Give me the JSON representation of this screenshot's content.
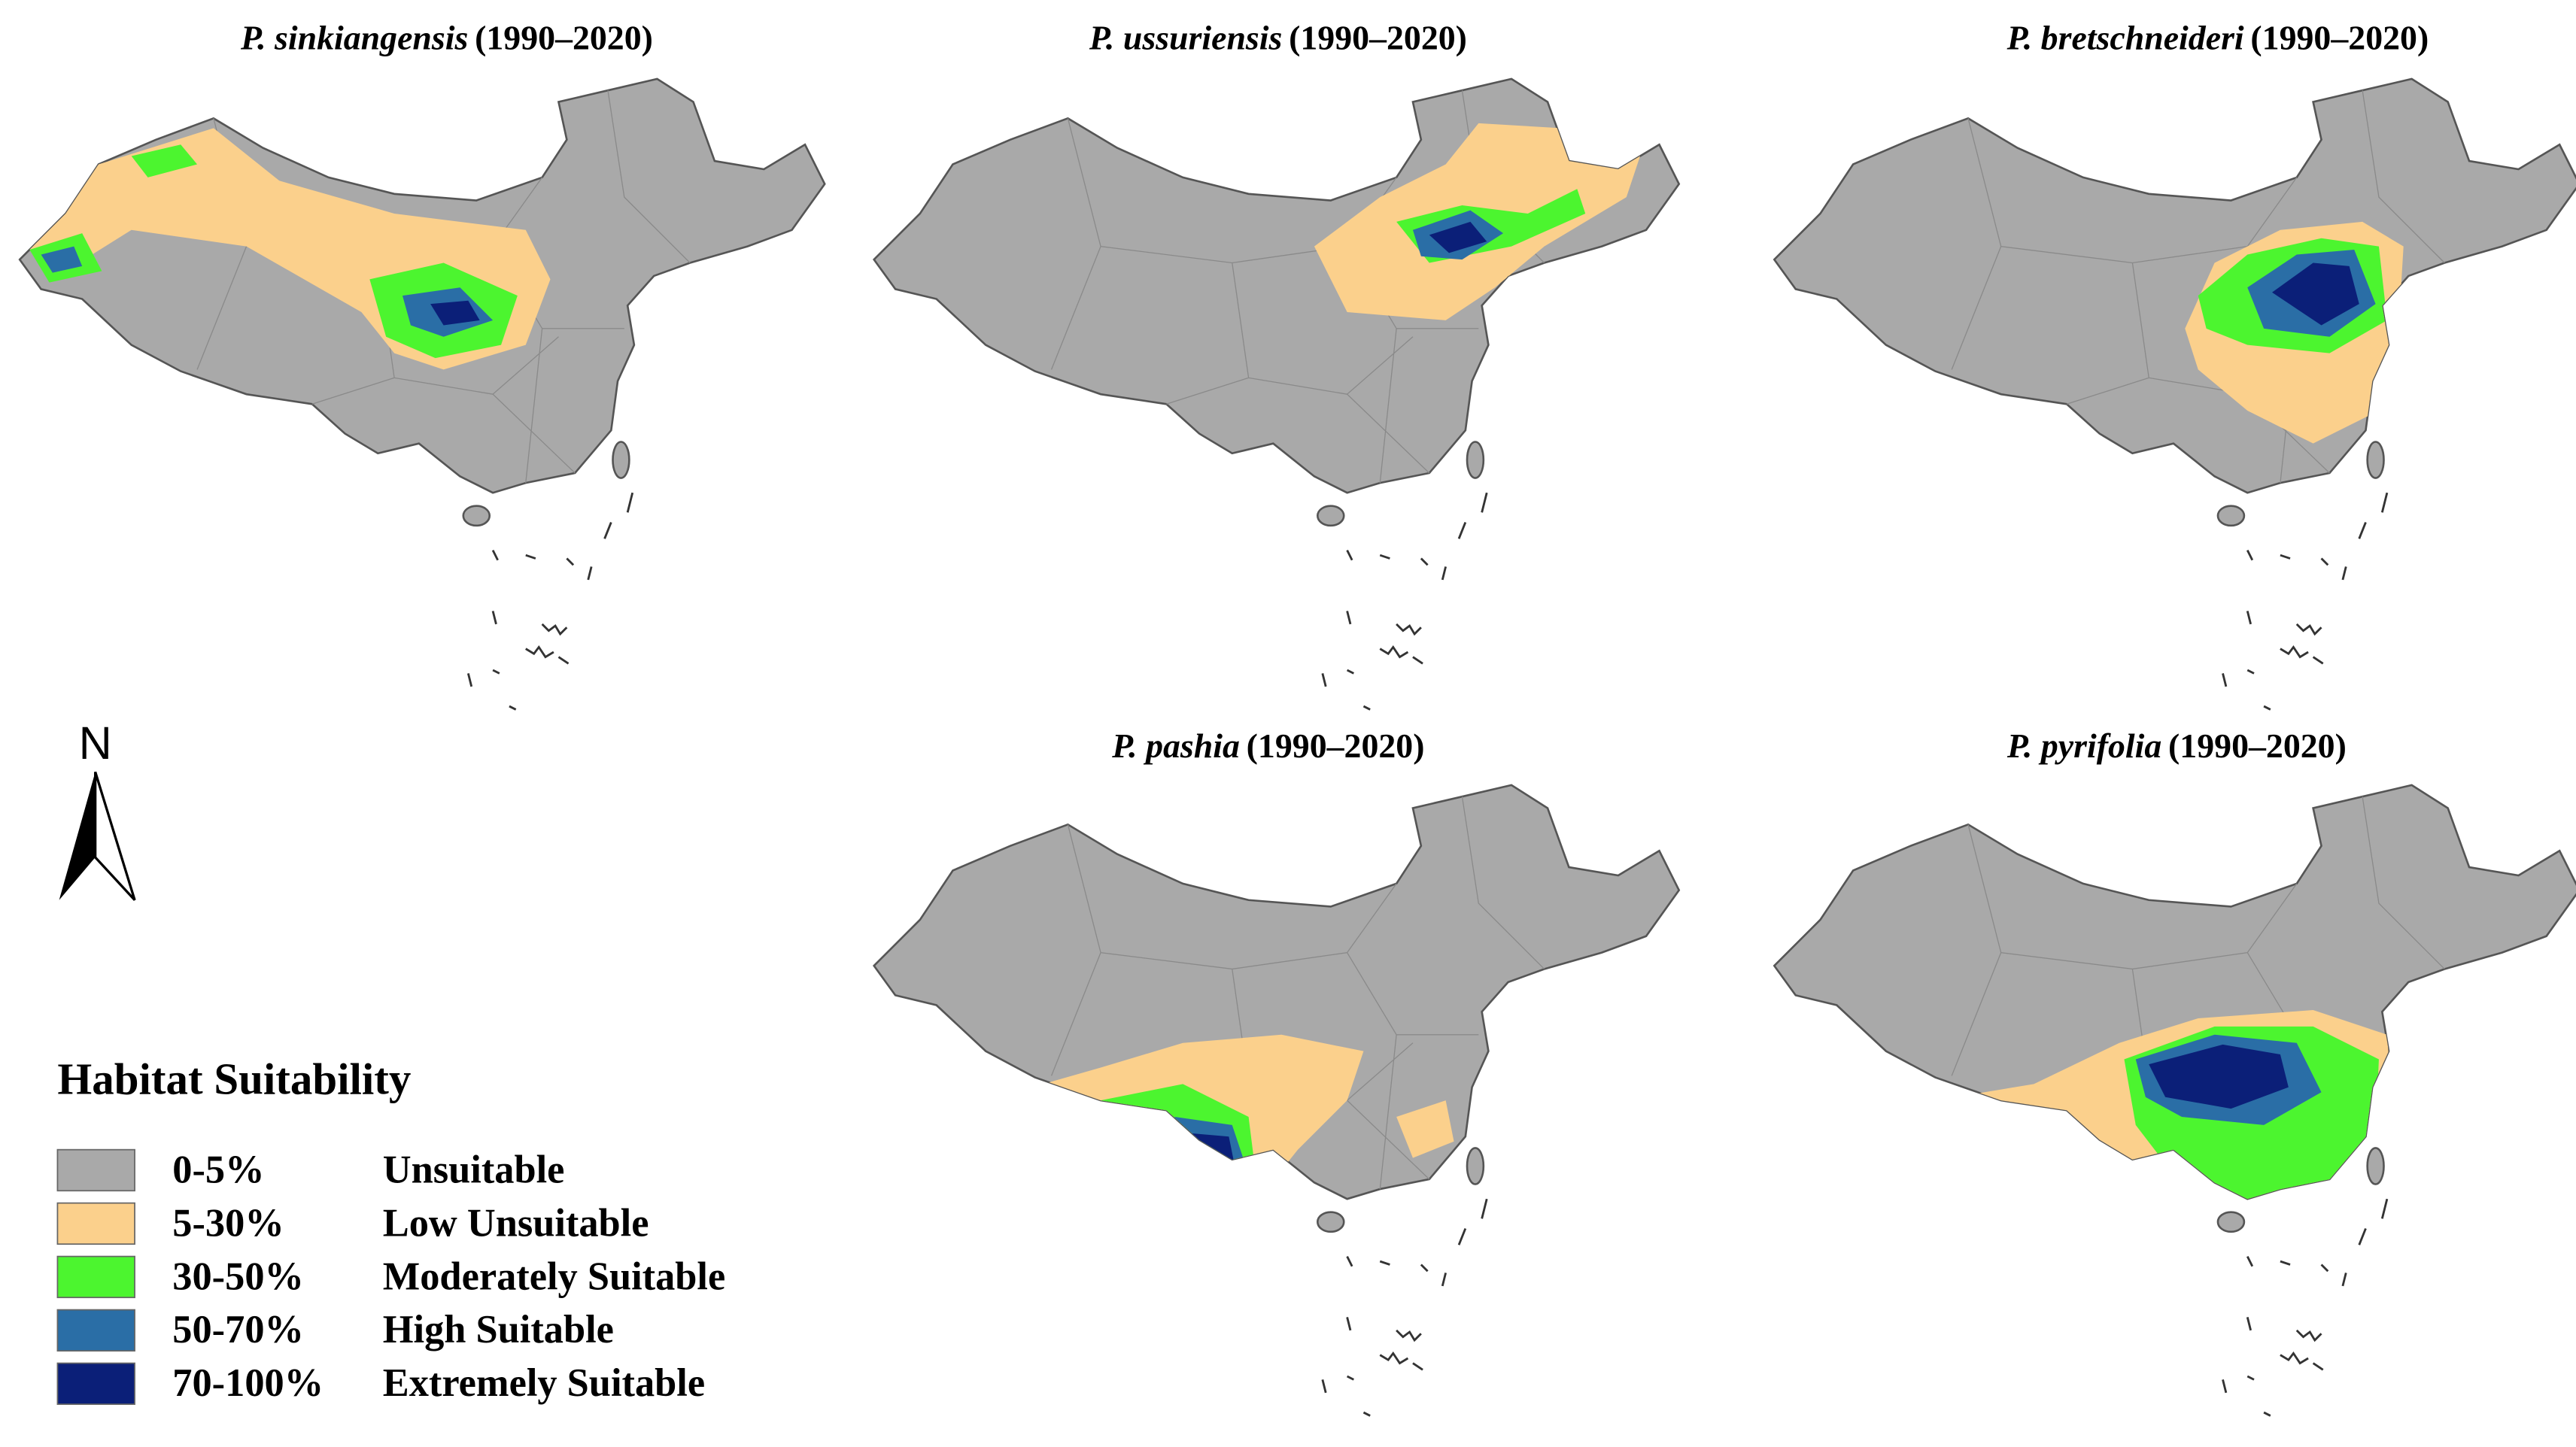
{
  "panels": [
    {
      "species": "P. sinkiangensis",
      "period": "(1990–2020)"
    },
    {
      "species": "P. ussuriensis",
      "period": "(1990–2020)"
    },
    {
      "species": "P. bretschneideri",
      "period": "(1990–2020)"
    },
    {
      "species": "P. pashia",
      "period": "(1990–2020)"
    },
    {
      "species": "P. pyrifolia",
      "period": "(1990–2020)"
    }
  ],
  "north_label": "N",
  "legend": {
    "title": "Habitat Suitability",
    "items": [
      {
        "range": "0-5%",
        "label": "Unsuitable",
        "color": "#a9a9a9"
      },
      {
        "range": "5-30%",
        "label": "Low Unsuitable",
        "color": "#fbd08c"
      },
      {
        "range": "30-50%",
        "label": "Moderately Suitable",
        "color": "#4cf52f"
      },
      {
        "range": "50-70%",
        "label": "High Suitable",
        "color": "#2a6ea6"
      },
      {
        "range": "70-100%",
        "label": "Extremely Suitable",
        "color": "#0b1f78"
      }
    ]
  }
}
